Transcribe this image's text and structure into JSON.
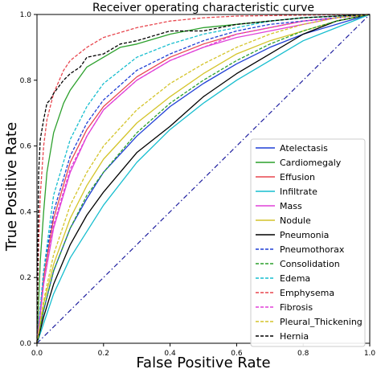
{
  "chart_data": {
    "type": "line",
    "title": "Receiver operating characteristic curve",
    "xlabel": "False Positive Rate",
    "ylabel": "True Positive Rate",
    "xlim": [
      0,
      1
    ],
    "ylim": [
      0,
      1
    ],
    "xticks": [
      "0.0",
      "0.2",
      "0.4",
      "0.6",
      "0.8",
      "1.0"
    ],
    "yticks": [
      "0.0",
      "0.2",
      "0.4",
      "0.6",
      "0.8",
      "1.0"
    ],
    "grid": false,
    "legend_position": "lower-right",
    "diagonal": {
      "x": [
        0,
        1
      ],
      "y": [
        0,
        1
      ],
      "color": "#1f1f9f",
      "style": "dashdot"
    },
    "series": [
      {
        "name": "Atelectasis",
        "color": "#1f3fd6",
        "dash": "solid",
        "x": [
          0,
          0.02,
          0.05,
          0.1,
          0.15,
          0.2,
          0.3,
          0.4,
          0.5,
          0.6,
          0.7,
          0.8,
          0.9,
          1.0
        ],
        "y": [
          0,
          0.1,
          0.22,
          0.35,
          0.44,
          0.52,
          0.63,
          0.72,
          0.79,
          0.85,
          0.9,
          0.94,
          0.97,
          1.0
        ]
      },
      {
        "name": "Cardiomegaly",
        "color": "#2ca02c",
        "dash": "solid",
        "x": [
          0,
          0.01,
          0.02,
          0.03,
          0.05,
          0.08,
          0.1,
          0.15,
          0.2,
          0.25,
          0.3,
          0.4,
          0.5,
          0.6,
          0.7,
          0.8,
          0.9,
          1.0
        ],
        "y": [
          0,
          0.25,
          0.4,
          0.52,
          0.64,
          0.73,
          0.77,
          0.84,
          0.87,
          0.9,
          0.91,
          0.94,
          0.96,
          0.97,
          0.98,
          0.99,
          0.995,
          1.0
        ]
      },
      {
        "name": "Effusion",
        "color": "#e8474f",
        "dash": "solid",
        "x": [
          0,
          0.02,
          0.05,
          0.1,
          0.15,
          0.2,
          0.3,
          0.4,
          0.5,
          0.6,
          0.7,
          0.8,
          0.9,
          1.0
        ],
        "y": [
          0,
          0.2,
          0.38,
          0.55,
          0.65,
          0.72,
          0.81,
          0.87,
          0.91,
          0.94,
          0.96,
          0.98,
          0.99,
          1.0
        ]
      },
      {
        "name": "Infiltrate",
        "color": "#17becf",
        "dash": "solid",
        "x": [
          0,
          0.05,
          0.1,
          0.2,
          0.3,
          0.4,
          0.5,
          0.6,
          0.7,
          0.8,
          0.9,
          1.0
        ],
        "y": [
          0,
          0.15,
          0.26,
          0.42,
          0.55,
          0.65,
          0.73,
          0.8,
          0.86,
          0.92,
          0.96,
          1.0
        ]
      },
      {
        "name": "Mass",
        "color": "#e040d8",
        "dash": "solid",
        "x": [
          0,
          0.02,
          0.05,
          0.1,
          0.15,
          0.2,
          0.3,
          0.4,
          0.5,
          0.6,
          0.7,
          0.8,
          0.9,
          1.0
        ],
        "y": [
          0,
          0.18,
          0.35,
          0.52,
          0.63,
          0.71,
          0.8,
          0.86,
          0.9,
          0.93,
          0.95,
          0.97,
          0.99,
          1.0
        ]
      },
      {
        "name": "Nodule",
        "color": "#d4c42a",
        "dash": "solid",
        "x": [
          0,
          0.02,
          0.05,
          0.1,
          0.15,
          0.2,
          0.3,
          0.4,
          0.5,
          0.6,
          0.7,
          0.8,
          0.9,
          1.0
        ],
        "y": [
          0,
          0.12,
          0.24,
          0.38,
          0.48,
          0.56,
          0.67,
          0.75,
          0.82,
          0.88,
          0.92,
          0.95,
          0.98,
          1.0
        ]
      },
      {
        "name": "Pneumonia",
        "color": "#000000",
        "dash": "solid",
        "x": [
          0,
          0.02,
          0.05,
          0.1,
          0.15,
          0.2,
          0.3,
          0.4,
          0.5,
          0.6,
          0.7,
          0.8,
          0.9,
          1.0
        ],
        "y": [
          0,
          0.08,
          0.18,
          0.3,
          0.39,
          0.46,
          0.58,
          0.66,
          0.75,
          0.82,
          0.88,
          0.94,
          0.98,
          1.0
        ]
      },
      {
        "name": "Pneumothorax",
        "color": "#1f3fd6",
        "dash": "dashed",
        "x": [
          0,
          0.02,
          0.05,
          0.1,
          0.15,
          0.2,
          0.3,
          0.4,
          0.5,
          0.6,
          0.7,
          0.8,
          0.9,
          1.0
        ],
        "y": [
          0,
          0.22,
          0.4,
          0.57,
          0.67,
          0.74,
          0.83,
          0.88,
          0.92,
          0.95,
          0.97,
          0.98,
          0.99,
          1.0
        ]
      },
      {
        "name": "Consolidation",
        "color": "#2ca02c",
        "dash": "dashed",
        "x": [
          0,
          0.02,
          0.05,
          0.1,
          0.15,
          0.2,
          0.3,
          0.4,
          0.5,
          0.6,
          0.7,
          0.8,
          0.9,
          1.0
        ],
        "y": [
          0,
          0.1,
          0.22,
          0.35,
          0.45,
          0.52,
          0.64,
          0.73,
          0.8,
          0.86,
          0.91,
          0.95,
          0.98,
          1.0
        ]
      },
      {
        "name": "Edema",
        "color": "#17becf",
        "dash": "dashed",
        "x": [
          0,
          0.02,
          0.05,
          0.1,
          0.15,
          0.2,
          0.3,
          0.4,
          0.5,
          0.6,
          0.7,
          0.8,
          0.9,
          1.0
        ],
        "y": [
          0,
          0.22,
          0.45,
          0.62,
          0.72,
          0.79,
          0.87,
          0.91,
          0.94,
          0.96,
          0.98,
          0.99,
          0.995,
          1.0
        ]
      },
      {
        "name": "Emphysema",
        "color": "#e8474f",
        "dash": "dashed",
        "x": [
          0,
          0.005,
          0.01,
          0.02,
          0.03,
          0.05,
          0.08,
          0.1,
          0.15,
          0.2,
          0.3,
          0.4,
          0.5,
          0.6,
          0.8,
          1.0
        ],
        "y": [
          0,
          0.3,
          0.45,
          0.6,
          0.68,
          0.76,
          0.83,
          0.86,
          0.9,
          0.93,
          0.96,
          0.98,
          0.99,
          0.995,
          0.998,
          1.0
        ]
      },
      {
        "name": "Fibrosis",
        "color": "#e040d8",
        "dash": "dashed",
        "x": [
          0,
          0.02,
          0.05,
          0.1,
          0.15,
          0.2,
          0.3,
          0.4,
          0.5,
          0.6,
          0.7,
          0.8,
          0.9,
          1.0
        ],
        "y": [
          0,
          0.18,
          0.36,
          0.53,
          0.63,
          0.71,
          0.8,
          0.86,
          0.9,
          0.94,
          0.96,
          0.98,
          0.99,
          1.0
        ]
      },
      {
        "name": "Pleural_Thickening",
        "color": "#d4c42a",
        "dash": "dashed",
        "x": [
          0,
          0.02,
          0.05,
          0.1,
          0.15,
          0.2,
          0.3,
          0.4,
          0.5,
          0.6,
          0.7,
          0.8,
          0.9,
          1.0
        ],
        "y": [
          0,
          0.13,
          0.27,
          0.42,
          0.52,
          0.6,
          0.71,
          0.79,
          0.85,
          0.9,
          0.94,
          0.97,
          0.99,
          1.0
        ]
      },
      {
        "name": "Hernia",
        "color": "#000000",
        "dash": "dashed",
        "x": [
          0,
          0.005,
          0.01,
          0.02,
          0.03,
          0.04,
          0.05,
          0.08,
          0.1,
          0.13,
          0.15,
          0.2,
          0.25,
          0.3,
          0.4,
          0.5,
          0.6,
          0.8,
          1.0
        ],
        "y": [
          0,
          0.52,
          0.62,
          0.68,
          0.73,
          0.74,
          0.76,
          0.8,
          0.82,
          0.84,
          0.87,
          0.88,
          0.91,
          0.92,
          0.95,
          0.95,
          0.97,
          0.99,
          1.0
        ]
      }
    ]
  }
}
